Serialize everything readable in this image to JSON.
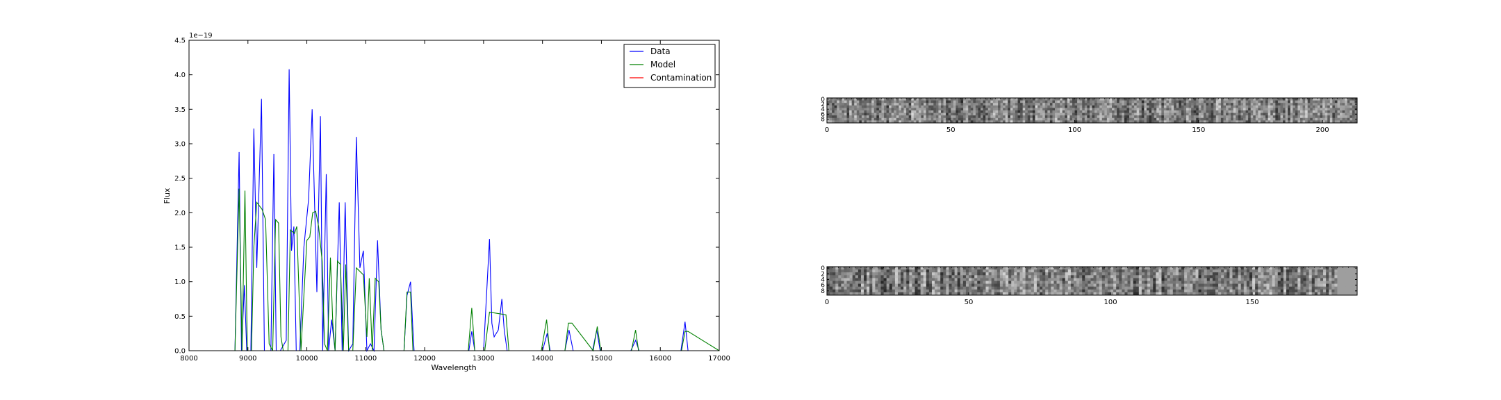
{
  "chart_data": [
    {
      "type": "line",
      "xlabel": "Wavelength",
      "ylabel": "Flux",
      "offset_text": "1e−19",
      "xlim": [
        8000,
        17000
      ],
      "ylim": [
        0,
        4.5
      ],
      "xticks": [
        8000,
        9000,
        10000,
        11000,
        12000,
        13000,
        14000,
        15000,
        16000,
        17000
      ],
      "yticks": [
        0.0,
        0.5,
        1.0,
        1.5,
        2.0,
        2.5,
        3.0,
        3.5,
        4.0,
        4.5
      ],
      "xtick_labels": [
        "8000",
        "9000",
        "10000",
        "11000",
        "12000",
        "13000",
        "14000",
        "15000",
        "16000",
        "17000"
      ],
      "ytick_labels": [
        "0.0",
        "0.5",
        "1.0",
        "1.5",
        "2.0",
        "2.5",
        "3.0",
        "3.5",
        "4.0",
        "4.5"
      ],
      "legend_position": "top-right",
      "grid": false,
      "series": [
        {
          "name": "Data",
          "color": "#0000ff",
          "x": [
            8000,
            8780,
            8850,
            8890,
            8940,
            8980,
            9050,
            9100,
            9150,
            9230,
            9280,
            9330,
            9390,
            9440,
            9480,
            9550,
            9650,
            9700,
            9740,
            9780,
            9820,
            9880,
            9950,
            10030,
            10090,
            10170,
            10230,
            10270,
            10330,
            10370,
            10420,
            10480,
            10550,
            10600,
            10650,
            10710,
            10780,
            10840,
            10900,
            10960,
            11020,
            11080,
            11140,
            11200,
            11260,
            11310,
            11650,
            11700,
            11760,
            11800,
            11820,
            12750,
            12800,
            12850,
            13000,
            13100,
            13140,
            13180,
            13250,
            13310,
            13350,
            13400,
            14000,
            14080,
            14130,
            14380,
            14450,
            14520,
            14850,
            14920,
            14980,
            15500,
            15580,
            15640,
            16350,
            16420,
            16470,
            17000
          ],
          "y": [
            0,
            0,
            2.88,
            0,
            0.95,
            0,
            0,
            3.22,
            1.2,
            3.65,
            0,
            0,
            0,
            2.85,
            0,
            0,
            0.15,
            4.08,
            1.45,
            1.8,
            0,
            0,
            1.5,
            2.2,
            3.5,
            0.85,
            3.4,
            0,
            2.56,
            0,
            0.45,
            0,
            2.15,
            0,
            2.15,
            0,
            0.1,
            3.1,
            1.2,
            1.45,
            0,
            0.1,
            0,
            1.6,
            0.3,
            0,
            0,
            0.8,
            1.0,
            0.3,
            0,
            0,
            0.28,
            0,
            0,
            1.62,
            0.4,
            0.2,
            0.3,
            0.75,
            0.3,
            0,
            0,
            0.25,
            0,
            0,
            0.3,
            0,
            0,
            0.3,
            0,
            0,
            0.15,
            0,
            0,
            0.42,
            0,
            0
          ]
        },
        {
          "name": "Model",
          "color": "#008000",
          "x": [
            8000,
            8780,
            8850,
            8900,
            8950,
            8990,
            9060,
            9100,
            9150,
            9240,
            9300,
            9360,
            9420,
            9470,
            9520,
            9560,
            9600,
            9680,
            9720,
            9790,
            9830,
            9900,
            9950,
            10000,
            10050,
            10100,
            10150,
            10200,
            10260,
            10300,
            10350,
            10400,
            10440,
            10480,
            10520,
            10570,
            10620,
            10660,
            10710,
            10780,
            10840,
            10900,
            10960,
            11020,
            11060,
            11110,
            11160,
            11220,
            11260,
            11310,
            11650,
            11700,
            11760,
            11800,
            12740,
            12800,
            12850,
            13020,
            13100,
            13380,
            13430,
            13980,
            14070,
            14120,
            14380,
            14440,
            14500,
            14860,
            14930,
            14990,
            15510,
            15580,
            15630,
            16360,
            16420,
            16470,
            17000
          ],
          "y": [
            0,
            0,
            2.35,
            0,
            2.32,
            0,
            0,
            1.5,
            2.15,
            2.05,
            1.9,
            0.1,
            0,
            1.9,
            1.85,
            0.2,
            0,
            0,
            1.75,
            1.7,
            1.8,
            0,
            0.8,
            1.6,
            1.65,
            2.0,
            2.02,
            1.8,
            1.3,
            0.1,
            0,
            1.35,
            0.4,
            0,
            1.3,
            1.25,
            0,
            1.25,
            0,
            0,
            1.2,
            1.15,
            1.1,
            0.2,
            1.05,
            0,
            1.05,
            1.0,
            0.3,
            0,
            0,
            0.85,
            0.85,
            0,
            0,
            0.62,
            0,
            0,
            0.56,
            0.52,
            0,
            0,
            0.45,
            0,
            0,
            0.4,
            0.4,
            0,
            0.35,
            0,
            0,
            0.3,
            0,
            0,
            0.28,
            0.28,
            0
          ]
        },
        {
          "name": "Contamination",
          "color": "#ff0000",
          "x": [
            8000,
            17000
          ],
          "y": [
            0,
            0
          ]
        }
      ]
    },
    {
      "type": "heatmap",
      "colormap": "gray",
      "xlim": [
        0,
        214
      ],
      "ylim": [
        0,
        10
      ],
      "xticks": [
        0,
        50,
        100,
        150,
        200
      ],
      "yticks": [
        0,
        2,
        4,
        6,
        8
      ],
      "xtick_labels": [
        "0",
        "50",
        "100",
        "150",
        "200"
      ],
      "ytick_labels": [
        "0",
        "2",
        "4",
        "6",
        "8"
      ],
      "cols": 214,
      "rows": 10,
      "masked_columns_from": 214,
      "seed": 17
    },
    {
      "type": "heatmap",
      "colormap": "gray",
      "xlim": [
        0,
        187
      ],
      "ylim": [
        0,
        10
      ],
      "xticks": [
        0,
        50,
        100,
        150
      ],
      "yticks": [
        0,
        2,
        4,
        6,
        8
      ],
      "xtick_labels": [
        "0",
        "50",
        "100",
        "150"
      ],
      "ytick_labels": [
        "0",
        "2",
        "4",
        "6",
        "8"
      ],
      "cols": 187,
      "rows": 10,
      "masked_columns_from": 180,
      "seed": 53
    }
  ]
}
